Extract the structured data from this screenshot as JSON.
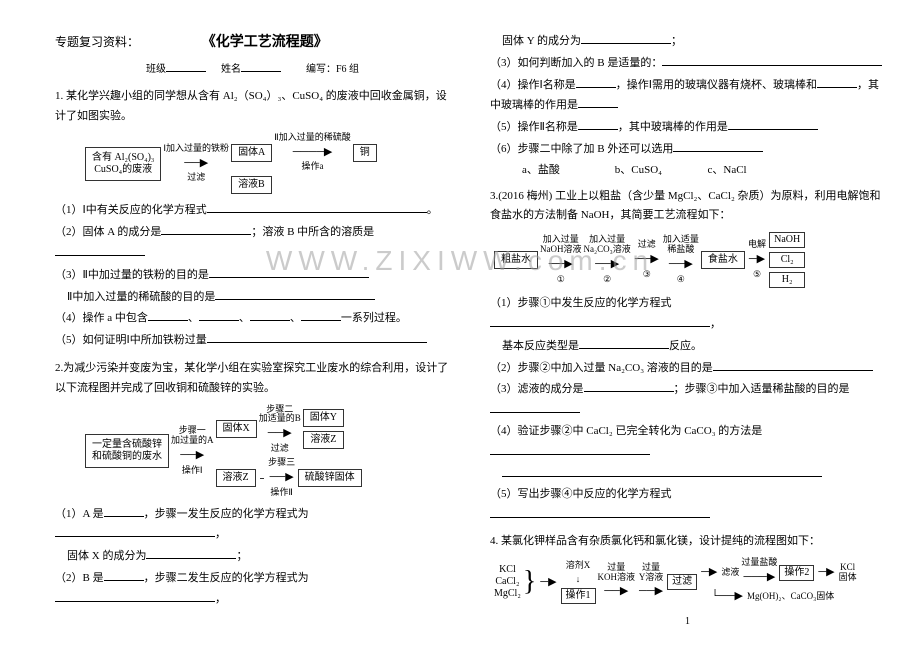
{
  "header": {
    "topic_label": "专题复习资料：",
    "title": "《化学工艺流程题》",
    "class_label": "班级",
    "name_label": "姓名",
    "author_label": "编写：F6 组"
  },
  "left": {
    "q1_intro": "1. 某化学兴趣小组的同学想从含有 Al₂（SO₄）₃、CuSO₄ 的废液中回收金属铜，设计了如图实验。",
    "q1_box1": "含有 Al₂(SO₄)₃\nCuSO₄的废液",
    "q1_step1": "Ⅰ加入过量的铁粉",
    "q1_filter": "过滤",
    "q1_solidA": "固体A",
    "q1_step2": "Ⅱ加入过量的稀硫酸",
    "q1_opA": "操作a",
    "q1_cu": "铜",
    "q1_solB": "溶液B",
    "q1_1": "（1）Ⅰ中有关反应的化学方程式",
    "q1_2a": "（2）固体 A 的成分是",
    "q1_2b": "；溶液 B 中所含的溶质是",
    "q1_3a": "（3）Ⅱ中加过量的铁粉的目的是",
    "q1_3b": "Ⅱ中加入过量的稀硫酸的目的是",
    "q1_4a": "（4）操作 a 中包含",
    "q1_4b": "一系列过程。",
    "q1_5": "（5）如何证明Ⅰ中所加铁粉过量",
    "q2_intro": "2.为减少污染并变废为宝，某化学小组在实验室探究工业废水的综合利用，设计了以下流程图并完成了回收铜和硫酸锌的实验。",
    "q2_box1": "一定量含硫酸锌\n和硫酸铜的废水",
    "q2_s1": "步骤一",
    "q2_addA": "加过量的A",
    "q2_op1": "操作Ⅰ",
    "q2_solidX": "固体X",
    "q2_solZ": "溶液Z",
    "q2_s2": "步骤二",
    "q2_addB": "加适量的B",
    "q2_filter2": "过滤",
    "q2_solidY": "固体Y",
    "q2_solZ2": "溶液Z",
    "q2_s3": "步骤三",
    "q2_op2": "操作Ⅱ",
    "q2_znso4": "硫酸锌固体",
    "q2_1a": "（1）A 是",
    "q2_1b": "，步骤一发生反应的化学方程式为",
    "q2_1c": "固体 X 的成分为",
    "q2_2a": "（2）B 是",
    "q2_2b": "，步骤二发生反应的化学方程式为"
  },
  "right": {
    "r0": "固体 Y 的成分为",
    "r3": "（3）如何判断加入的 B 是适量的：",
    "r4a": "（4）操作Ⅰ名称是",
    "r4b": "，操作Ⅰ需用的玻璃仪器有烧杯、玻璃棒和",
    "r4c": "，其中玻璃棒的作用是",
    "r5a": "（5）操作Ⅱ名称是",
    "r5b": "，其中玻璃棒的作用是",
    "r6a": "（6）步骤二中除了加 B 外还可以选用",
    "opt_a": "a、盐酸",
    "opt_b": "b、CuSO₄",
    "opt_c": "c、NaCl",
    "q3_intro": "3.(2016 梅州) 工业上以粗盐（含少量 MgCl₂、CaCl₂ 杂质）为原料，利用电解饱和食盐水的方法制备 NaOH，其简要工艺流程如下：",
    "q3_box1": "粗盐水",
    "q3_s1": "加入过量\nNaOH溶液",
    "q3_c1": "①",
    "q3_s2": "加入过量\nNa₂CO₃溶液",
    "q3_c2": "②",
    "q3_filter": "过滤",
    "q3_c3": "③",
    "q3_s4": "加入适量\n稀盐酸",
    "q3_c4": "④",
    "q3_salt": "食盐水",
    "q3_elec": "电解",
    "q3_c5": "⑤",
    "q3_naoh": "NaOH",
    "q3_cl2": "Cl₂",
    "q3_h2": "H₂",
    "q3_1a": "（1）步骤①中发生反应的化学方程式",
    "q3_1b": "基本反应类型是",
    "q3_1c": "反应。",
    "q3_2a": "（2）步骤②中加入过量 Na₂CO₃ 溶液的目的是",
    "q3_3a": "（3）滤液的成分是",
    "q3_3b": "；步骤③中加入适量稀盐酸的目的是",
    "q3_4a": "（4）验证步骤②中 CaCl₂ 已完全转化为 CaCO₃ 的方法是",
    "q3_5": "（5）写出步骤④中反应的化学方程式",
    "q4_intro": "4. 某氯化钾样品含有杂质氯化钙和氯化镁，设计提纯的流程图如下：",
    "q4_in1": "KCl",
    "q4_in2": "CaCl₂",
    "q4_in3": "MgCl₂",
    "q4_op1": "操作1",
    "q4_solX": "溶剂X",
    "q4_koh": "过量\nKOH溶液",
    "q4_ysl": "过量\nY溶液",
    "q4_filter": "过滤",
    "q4_fl": "滤液",
    "q4_hcl": "过量盐酸",
    "q4_op2": "操作2",
    "q4_out": "KCl\n固体",
    "q4_solid": "Mg(OH)₂、CaCO₃固体"
  },
  "watermark": "WWW.ZIXIWW.com.cn",
  "page_number": "1"
}
